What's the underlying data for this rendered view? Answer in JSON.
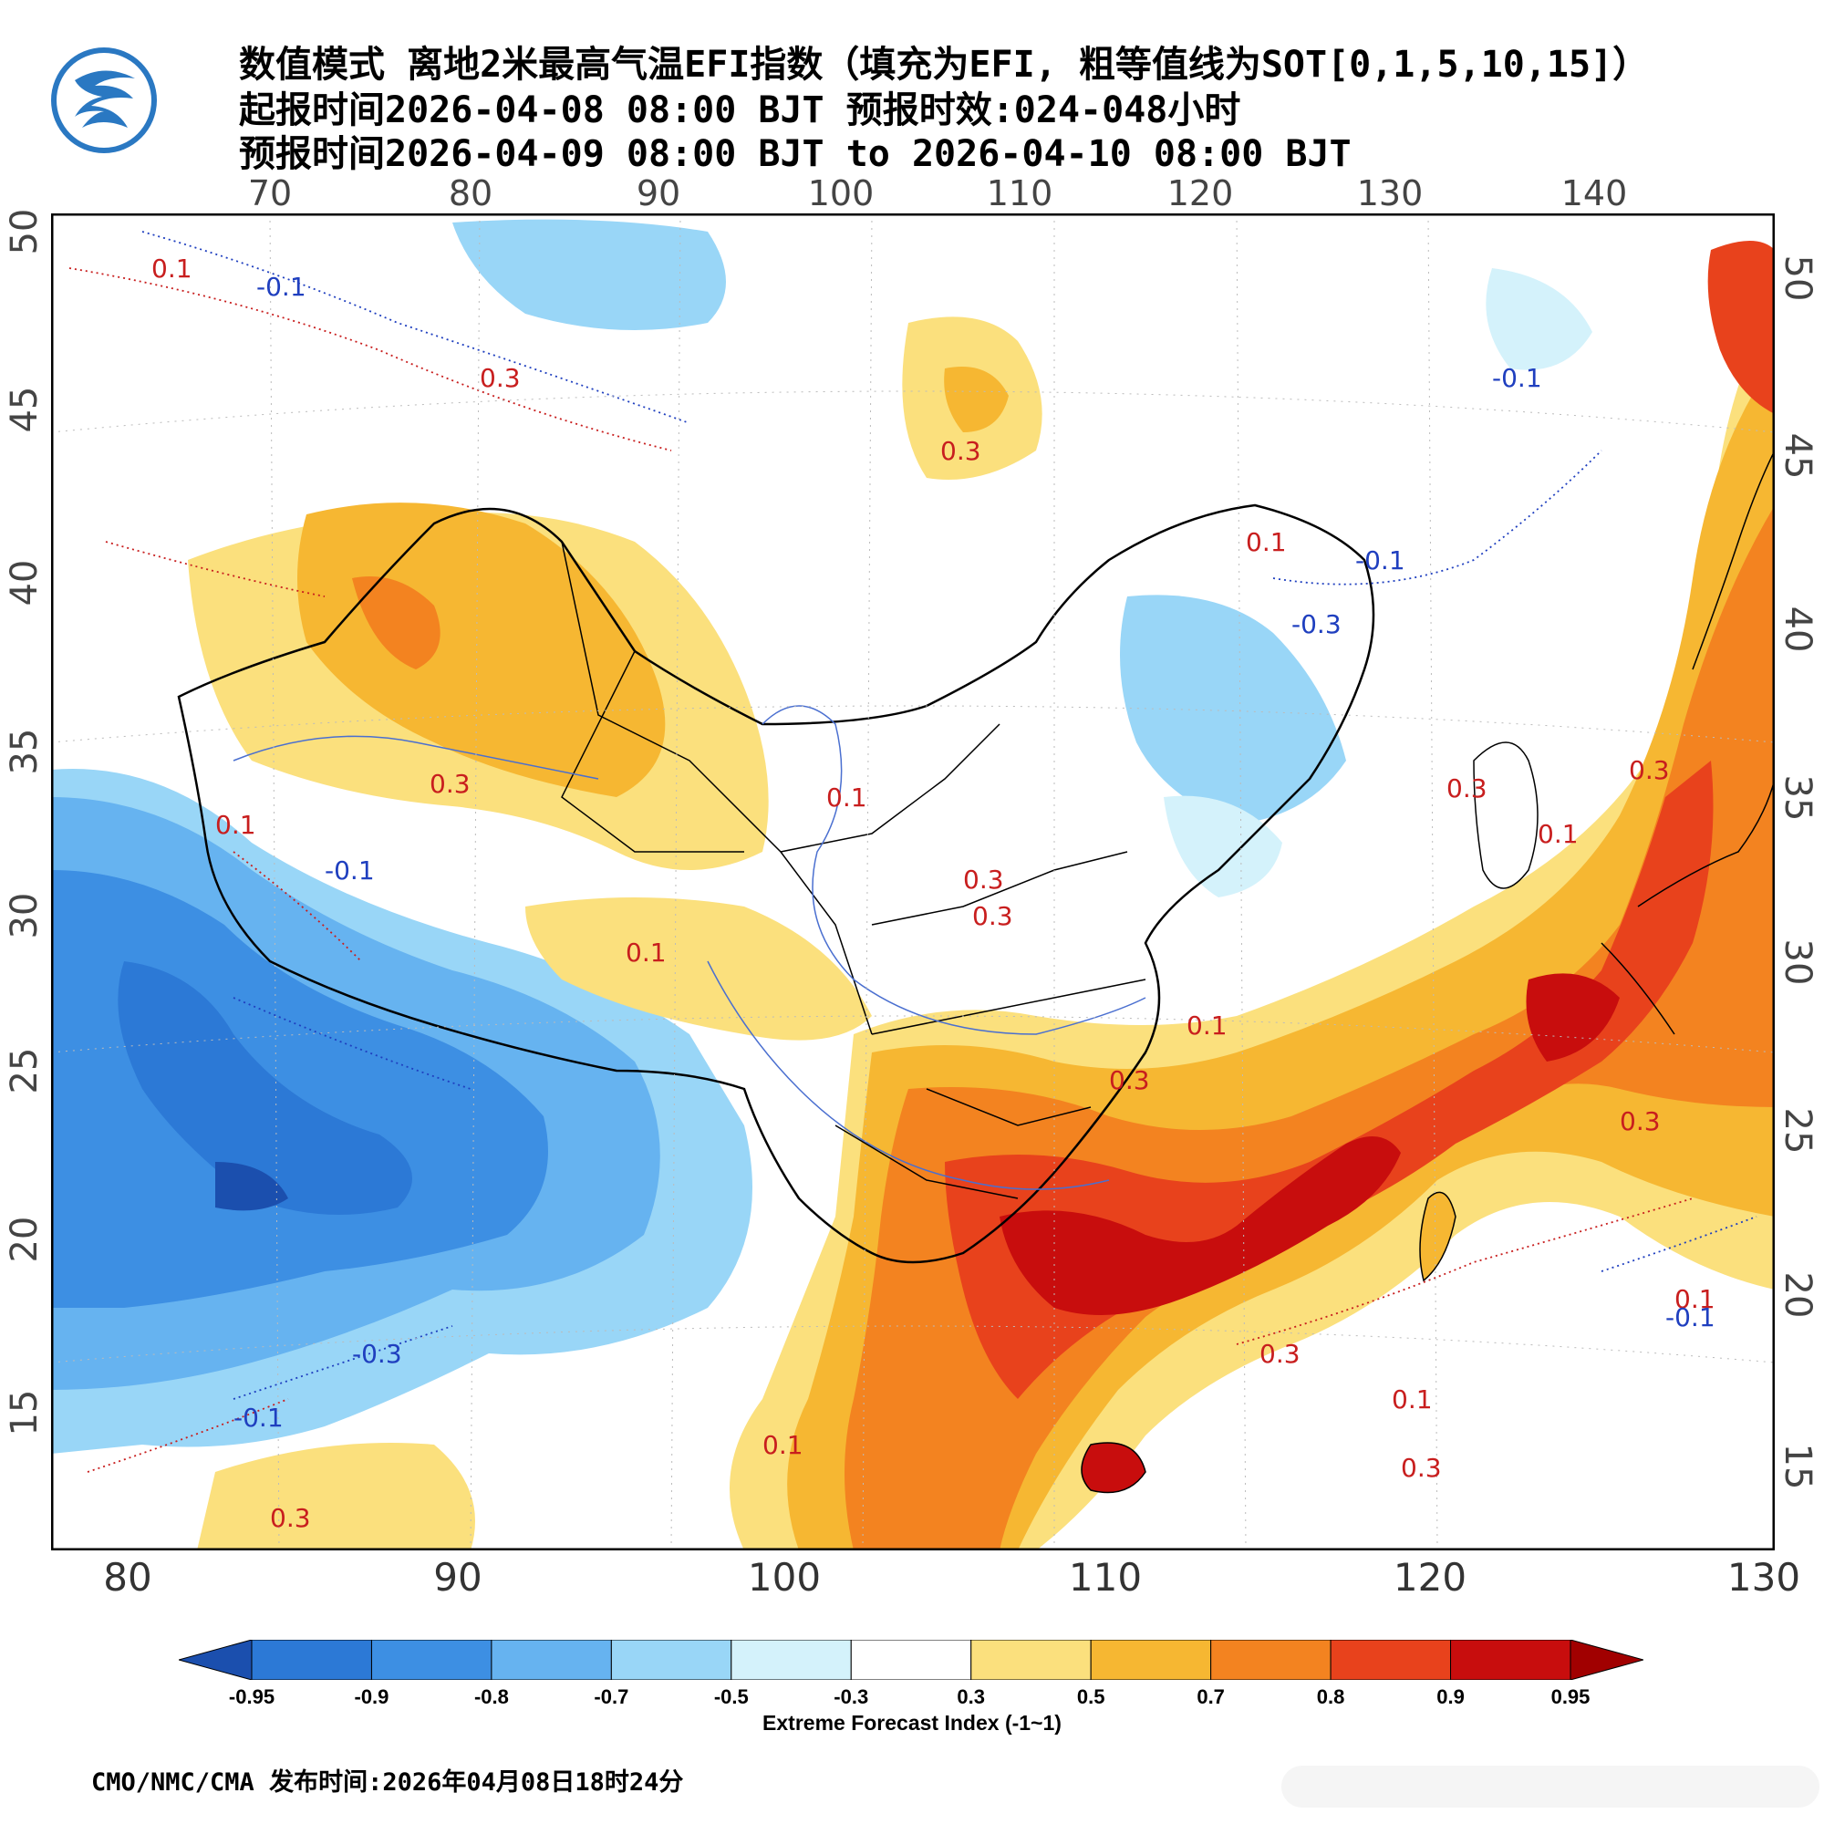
{
  "header": {
    "line1": "数值模式 离地2米最高气温EFI指数（填充为EFI, 粗等值线为SOT[0,1,5,10,15]）",
    "line2": "起报时间2026-04-08 08:00 BJT 预报时效:024-048小时",
    "line3": "预报时间2026-04-09 08:00 BJT to 2026-04-10 08:00 BJT"
  },
  "logo": {
    "icon": "cma-weather-logo",
    "color": "#1f6fb5"
  },
  "axes": {
    "top_lon": [
      "70",
      "80",
      "90",
      "100",
      "110",
      "120",
      "130",
      "140"
    ],
    "bottom_lon": [
      "80",
      "90",
      "100",
      "110",
      "120",
      "130"
    ],
    "left_lat": [
      "50",
      "45",
      "40",
      "35",
      "30",
      "25",
      "20",
      "15"
    ],
    "right_lat": [
      "50",
      "45",
      "40",
      "35",
      "30",
      "25",
      "20",
      "15"
    ]
  },
  "contour_labels": {
    "positive": [
      "0.1",
      "0.3",
      "0.3",
      "0.3",
      "0.3",
      "0.1",
      "0.1",
      "0.1",
      "0.3",
      "0.1",
      "0.1",
      "0.3",
      "0.3",
      "0.3",
      "0.3",
      "0.1",
      "0.1",
      "0.3",
      "0.3",
      "0.3",
      "0.1",
      "0.1"
    ],
    "negative": [
      "-0.1",
      "-0.1",
      "-0.1",
      "-0.3",
      "-0.1",
      "-0.1",
      "-0.1",
      "-0.3"
    ],
    "positive_color": "#c81e1e",
    "negative_color": "#1f3fbf"
  },
  "legend": {
    "ticks": [
      "-0.95",
      "-0.9",
      "-0.8",
      "-0.7",
      "-0.5",
      "-0.3",
      "0.3",
      "0.5",
      "0.7",
      "0.8",
      "0.9",
      "0.95"
    ],
    "colors": [
      "#1b4fae",
      "#2c79d6",
      "#3d8fe3",
      "#66b3f0",
      "#99d6f7",
      "#d4f2fb",
      "#ffffff",
      "#fbe07d",
      "#f6b732",
      "#f38320",
      "#e8421c",
      "#c80d0d",
      "#a10000"
    ],
    "label": "Extreme Forecast Index (-1~1)"
  },
  "footer": {
    "text": "CMO/NMC/CMA 发布时间:2026年04月08日18时24分"
  },
  "watermark": {
    "icon": "weibo-watermark-icon"
  }
}
